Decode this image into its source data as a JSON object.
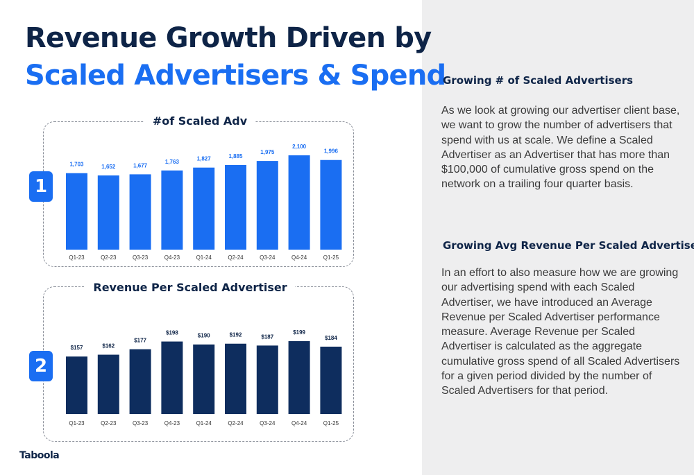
{
  "title": {
    "line1": "Revenue Growth Driven by",
    "line2": "Scaled Advertisers & Spend"
  },
  "logo": "Taboola",
  "colors": {
    "navy": "#0e2447",
    "blue": "#1a6ef2",
    "panel_bg": "#eeeeef"
  },
  "chart_data": [
    {
      "type": "bar",
      "badge": "1",
      "title": "#of Scaled Adv",
      "categories": [
        "Q1-23",
        "Q2-23",
        "Q3-23",
        "Q4-23",
        "Q1-24",
        "Q2-24",
        "Q3-24",
        "Q4-24",
        "Q1-25"
      ],
      "values": [
        1703,
        1652,
        1677,
        1763,
        1827,
        1885,
        1975,
        2100,
        1996
      ],
      "labels": [
        "1,703",
        "1,652",
        "1,677",
        "1,763",
        "1,827",
        "1,885",
        "1,975",
        "2,100",
        "1,996"
      ],
      "ylim": [
        0,
        2100
      ],
      "bar_color": "#1a6ef2",
      "label_color": "#1a6ef2",
      "grid": false
    },
    {
      "type": "bar",
      "badge": "2",
      "title": "Revenue Per Scaled Advertiser",
      "categories": [
        "Q1-23",
        "Q2-23",
        "Q3-23",
        "Q4-23",
        "Q1-24",
        "Q2-24",
        "Q3-24",
        "Q4-24",
        "Q1-25"
      ],
      "values": [
        157,
        162,
        177,
        198,
        190,
        192,
        187,
        199,
        184
      ],
      "labels": [
        "$157",
        "$162",
        "$177",
        "$198",
        "$190",
        "$192",
        "$187",
        "$199",
        "$184"
      ],
      "ylim": [
        0,
        199
      ],
      "bar_color": "#0e2d5e",
      "label_color": "#0e2447",
      "grid": false
    }
  ],
  "sections": [
    {
      "heading": "Growing # of Scaled Advertisers",
      "body": "As we look at growing our advertiser client base, we want to grow the number of advertisers that spend with us at scale. We define a Scaled Advertiser as an Advertiser that has more than $100,000 of cumulative gross spend on the network on a trailing four quarter basis."
    },
    {
      "heading": "Growing Avg  Revenue Per Scaled Advertiser",
      "body": "In an effort to also measure how we are growing our advertising spend with each Scaled Advertiser, we have introduced an Average Revenue per Scaled Advertiser performance measure. Average Revenue per Scaled Advertiser is calculated as the aggregate cumulative gross spend of all Scaled Advertisers for a given period divided by the number of Scaled Advertisers for that period."
    }
  ]
}
